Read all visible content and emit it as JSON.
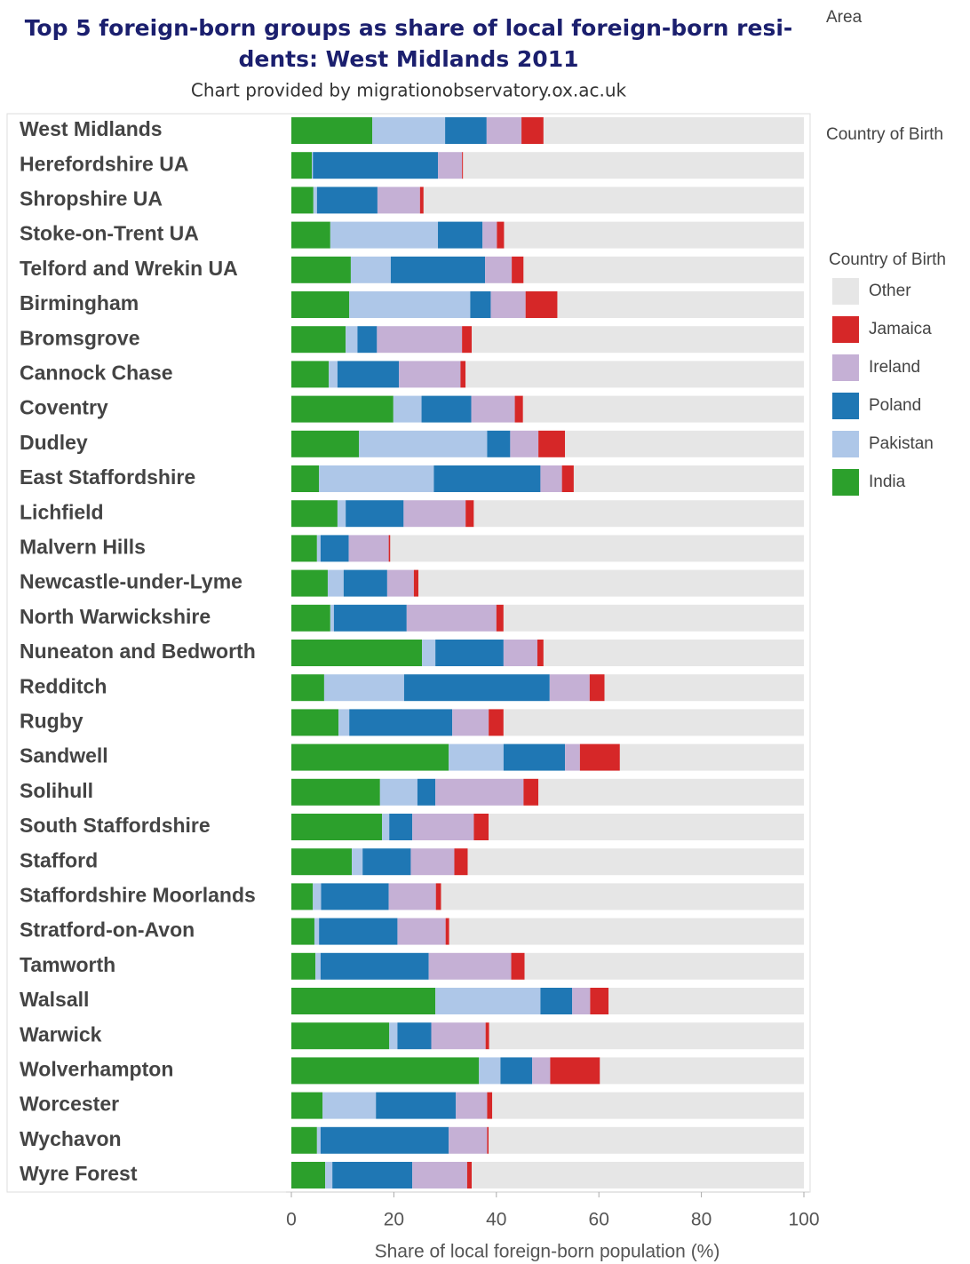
{
  "chart_data": {
    "type": "stacked_bar_horizontal",
    "title": [
      "Top 5 foreign-born groups as share of local foreign-born resi-",
      "dents: West Midlands 2011"
    ],
    "subtitle": "Chart provided by migrationobservatory.ox.ac.uk",
    "row_header": "Area",
    "column_header": "Country of Birth",
    "legend_title": "Country of Birth",
    "x_label": "Share of local foreign-born population (%)",
    "xlim": [
      0,
      100
    ],
    "xticks": [
      0,
      20,
      40,
      60,
      80,
      100
    ],
    "categories": [
      "West Midlands",
      "Herefordshire UA",
      "Shropshire UA",
      "Stoke-on-Trent UA",
      "Telford and Wrekin UA",
      "Birmingham",
      "Bromsgrove",
      "Cannock Chase",
      "Coventry",
      "Dudley",
      "East Staffordshire",
      "Lichfield",
      "Malvern Hills",
      "Newcastle-under-Lyme",
      "North Warwickshire",
      "Nuneaton and Bedworth",
      "Redditch",
      "Rugby",
      "Sandwell",
      "Solihull",
      "South Staffordshire",
      "Stafford",
      "Staffordshire Moorlands",
      "Stratford-on-Avon",
      "Tamworth",
      "Walsall",
      "Warwick",
      "Wolverhampton",
      "Worcester",
      "Wychavon",
      "Wyre Forest"
    ],
    "series": [
      {
        "name": "India",
        "color": "#2ca02c",
        "values": [
          15.8,
          4.0,
          4.3,
          7.6,
          11.6,
          11.3,
          10.6,
          7.3,
          19.9,
          13.2,
          5.4,
          9.0,
          5.0,
          7.1,
          7.6,
          25.5,
          6.4,
          9.2,
          30.7,
          17.3,
          17.7,
          11.8,
          4.2,
          4.5,
          4.7,
          28.1,
          19.1,
          36.6,
          6.1,
          5.0,
          6.6
        ]
      },
      {
        "name": "Pakistan",
        "color": "#aec7e8",
        "values": [
          14.2,
          0.2,
          0.7,
          21.0,
          7.8,
          23.6,
          2.3,
          1.7,
          5.5,
          25.0,
          22.4,
          1.6,
          0.7,
          3.1,
          0.7,
          2.6,
          15.6,
          2.1,
          10.7,
          7.3,
          1.4,
          2.1,
          1.6,
          0.9,
          1.0,
          20.5,
          1.6,
          4.2,
          10.4,
          0.7,
          1.4
        ]
      },
      {
        "name": "Poland",
        "color": "#1f77b4",
        "values": [
          8.1,
          24.4,
          11.8,
          8.7,
          18.4,
          4.0,
          3.8,
          12.0,
          9.7,
          4.5,
          20.8,
          11.3,
          5.5,
          8.5,
          14.2,
          13.3,
          28.4,
          20.1,
          12.0,
          3.5,
          4.5,
          9.4,
          13.2,
          15.3,
          21.1,
          6.2,
          6.6,
          6.2,
          15.6,
          25.0,
          15.6
        ]
      },
      {
        "name": "Ireland",
        "color": "#c5b0d5",
        "values": [
          6.8,
          4.7,
          8.3,
          2.8,
          5.2,
          6.8,
          16.6,
          12.0,
          8.5,
          5.5,
          4.2,
          12.1,
          7.8,
          5.2,
          17.5,
          6.6,
          7.8,
          7.1,
          2.9,
          17.2,
          12.0,
          8.5,
          9.2,
          9.4,
          16.1,
          3.5,
          10.6,
          3.5,
          6.1,
          7.5,
          10.7
        ]
      },
      {
        "name": "Jamaica",
        "color": "#d62728",
        "values": [
          4.3,
          0.2,
          0.7,
          1.4,
          2.3,
          6.2,
          1.9,
          1.0,
          1.6,
          5.2,
          2.3,
          1.6,
          0.3,
          0.9,
          1.4,
          1.2,
          2.9,
          2.9,
          7.8,
          2.9,
          2.9,
          2.6,
          1.0,
          0.7,
          2.6,
          3.6,
          0.7,
          9.7,
          1.0,
          0.3,
          0.9
        ]
      },
      {
        "name": "Other",
        "color": "#e6e6e6",
        "values": [
          50.8,
          66.5,
          74.2,
          58.5,
          54.7,
          48.1,
          64.8,
          66.0,
          54.8,
          46.6,
          44.9,
          64.4,
          80.7,
          75.2,
          58.6,
          50.8,
          38.9,
          58.6,
          35.9,
          51.8,
          61.5,
          65.6,
          70.8,
          69.2,
          54.5,
          38.1,
          61.4,
          39.8,
          60.8,
          61.5,
          64.8
        ]
      }
    ]
  }
}
